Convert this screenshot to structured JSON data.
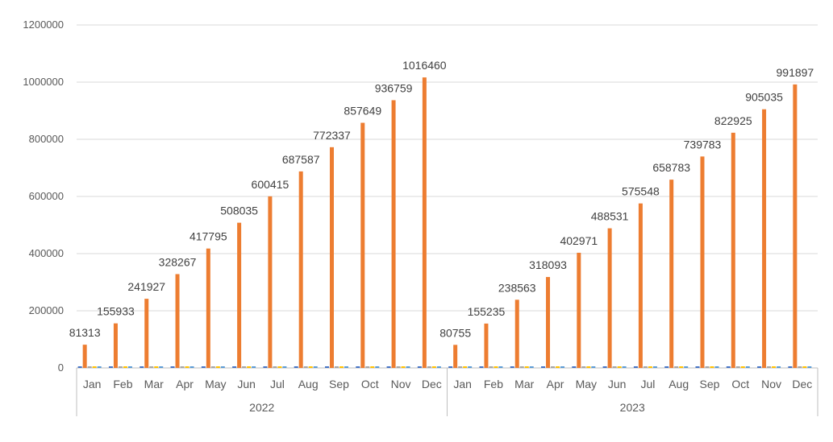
{
  "chart_data": {
    "type": "bar",
    "title": "",
    "xlabel": "",
    "ylabel": "",
    "ylim": [
      0,
      1200000
    ],
    "yticks": [
      0,
      200000,
      400000,
      600000,
      800000,
      1000000,
      1200000
    ],
    "grid": true,
    "legend": "none",
    "groups": [
      {
        "name": "2022",
        "categories": [
          "Jan",
          "Feb",
          "Mar",
          "Apr",
          "May",
          "Jun",
          "Jul",
          "Aug",
          "Sep",
          "Oct",
          "Nov",
          "Dec"
        ],
        "values": [
          81313,
          155933,
          241927,
          328267,
          417795,
          508035,
          600415,
          687587,
          772337,
          857649,
          936759,
          1016460
        ]
      },
      {
        "name": "2023",
        "categories": [
          "Jan",
          "Feb",
          "Mar",
          "Apr",
          "May",
          "Jun",
          "Jul",
          "Aug",
          "Sep",
          "Oct",
          "Nov",
          "Dec"
        ],
        "values": [
          80755,
          155235,
          238563,
          318093,
          402971,
          488531,
          575548,
          658783,
          739783,
          822925,
          905035,
          991897
        ]
      }
    ],
    "bar_color": "#ED7D31",
    "minor_series_colors": [
      "#4472C4",
      "#A5A5A5",
      "#FFC000",
      "#5B9BD5"
    ],
    "gridline_color": "#D9D9D9",
    "axis_color": "#BFBFBF"
  }
}
